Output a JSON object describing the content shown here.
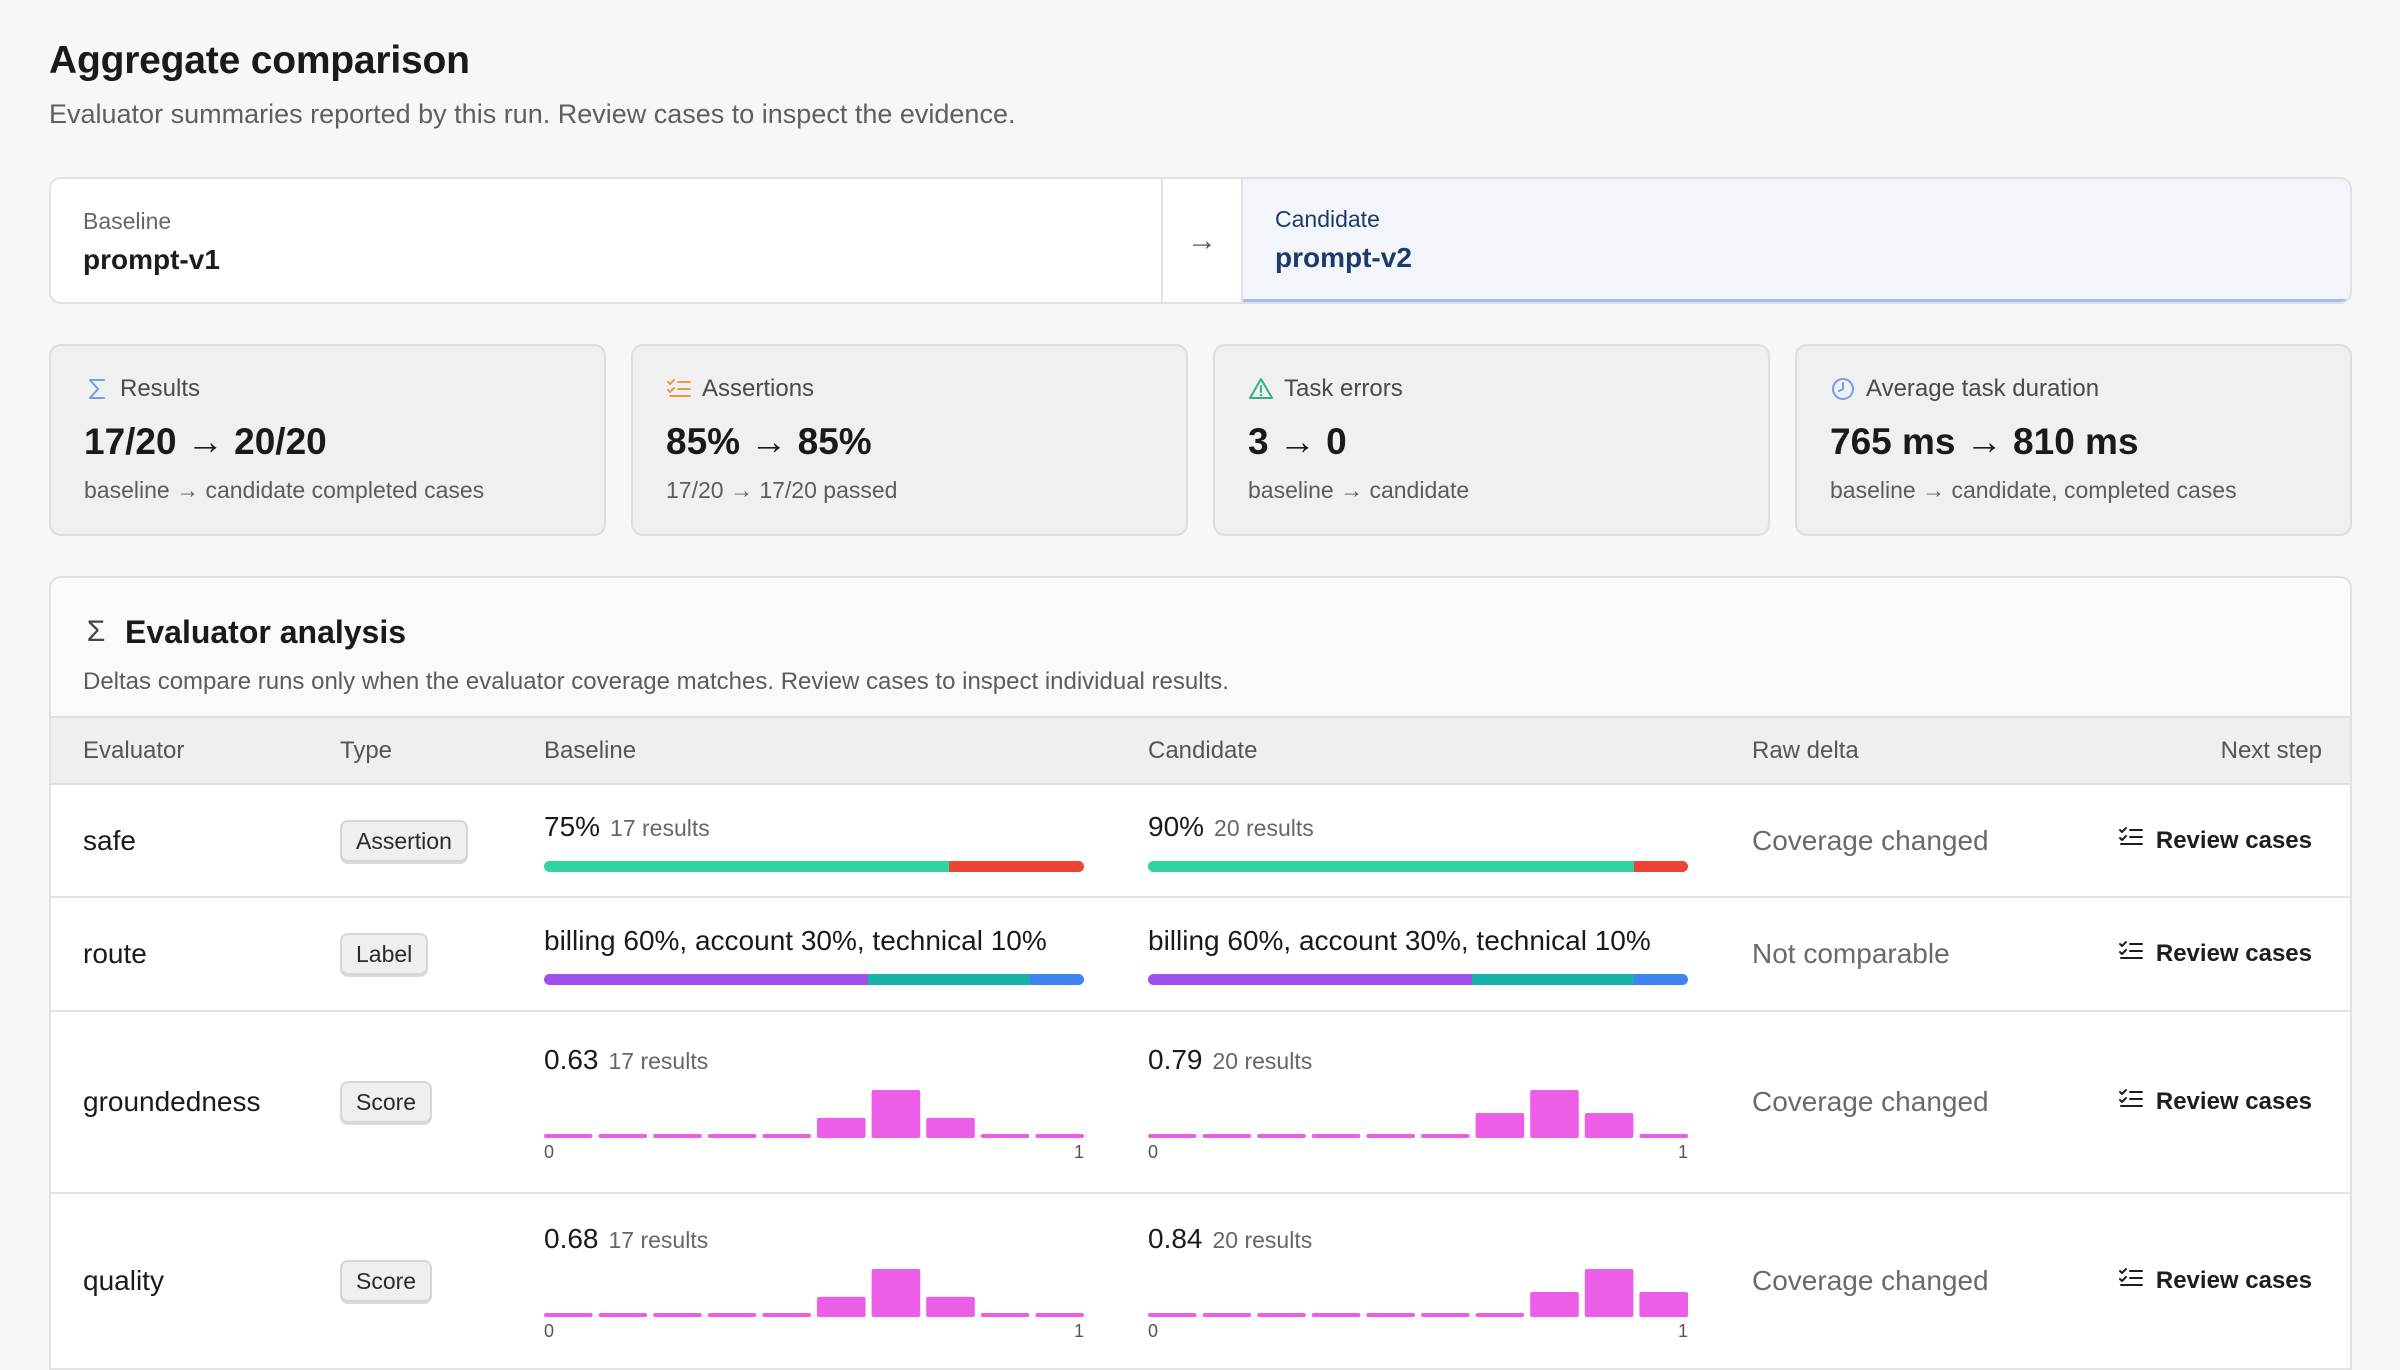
{
  "header": {
    "title": "Aggregate comparison",
    "subtitle": "Evaluator summaries reported by this run. Review cases to inspect the evidence."
  },
  "compare": {
    "baseline_label": "Baseline",
    "baseline_value": "prompt-v1",
    "arrow": "→",
    "candidate_label": "Candidate",
    "candidate_value": "prompt-v2"
  },
  "stats": [
    {
      "icon": "sigma-icon",
      "label": "Results",
      "value": "17/20 → 20/20",
      "detail": "baseline → candidate completed cases",
      "icon_color": "#6f9fe6"
    },
    {
      "icon": "checklist-icon",
      "label": "Assertions",
      "value": "85% → 85%",
      "detail": "17/20 → 17/20 passed",
      "icon_color": "#e99a4b"
    },
    {
      "icon": "warning-triangle-icon",
      "label": "Task errors",
      "value": "3 → 0",
      "detail": "baseline → candidate",
      "icon_color": "#2fb37a"
    },
    {
      "icon": "clock-icon",
      "label": "Average task duration",
      "value": "765 ms → 810 ms",
      "detail": "baseline → candidate, completed cases",
      "icon_color": "#6f9fe6"
    }
  ],
  "panel": {
    "title": "Evaluator analysis",
    "description": "Deltas compare runs only when the evaluator coverage matches. Review cases to inspect individual results.",
    "columns": {
      "evaluator": "Evaluator",
      "type": "Type",
      "baseline": "Baseline",
      "candidate": "Candidate",
      "delta": "Raw delta",
      "next": "Next step"
    },
    "review_label": "Review cases",
    "rows": [
      {
        "name": "safe",
        "type": "Assertion",
        "kind": "assertion",
        "baseline": {
          "value": "75%",
          "count": "17 results",
          "pass_fraction": 0.75
        },
        "candidate": {
          "value": "90%",
          "count": "20 results",
          "pass_fraction": 0.9
        },
        "delta": "Coverage changed"
      },
      {
        "name": "route",
        "type": "Label",
        "kind": "label",
        "baseline": {
          "value": "billing 60%, account 30%, technical 10%",
          "shares": [
            0.6,
            0.3,
            0.1
          ]
        },
        "candidate": {
          "value": "billing 60%, account 30%, technical 10%",
          "shares": [
            0.6,
            0.3,
            0.1
          ]
        },
        "delta": "Not comparable"
      },
      {
        "name": "groundedness",
        "type": "Score",
        "kind": "score",
        "baseline": {
          "value": "0.63",
          "count": "17 results",
          "hist": [
            0,
            0,
            0,
            0,
            0,
            0.42,
            1.0,
            0.42,
            0,
            0
          ],
          "axis_min": "0",
          "axis_max": "1"
        },
        "candidate": {
          "value": "0.79",
          "count": "20 results",
          "hist": [
            0,
            0,
            0,
            0,
            0,
            0,
            0.52,
            1.0,
            0.52,
            0
          ],
          "axis_min": "0",
          "axis_max": "1"
        },
        "delta": "Coverage changed"
      },
      {
        "name": "quality",
        "type": "Score",
        "kind": "score",
        "baseline": {
          "value": "0.68",
          "count": "17 results",
          "hist": [
            0,
            0,
            0,
            0,
            0,
            0.42,
            1.0,
            0.42,
            0,
            0
          ],
          "axis_min": "0",
          "axis_max": "1"
        },
        "candidate": {
          "value": "0.84",
          "count": "20 results",
          "hist": [
            0,
            0,
            0,
            0,
            0,
            0,
            0,
            0.52,
            1.0,
            0.52
          ],
          "axis_min": "0",
          "axis_max": "1"
        },
        "delta": "Coverage changed"
      }
    ]
  },
  "colors": {
    "pass": "#2fd4a0",
    "fail": "#ec4436",
    "label_a": "#a24ff0",
    "label_b": "#17b3a8",
    "label_c": "#3f83f0",
    "histogram": "#ec5ee8"
  }
}
